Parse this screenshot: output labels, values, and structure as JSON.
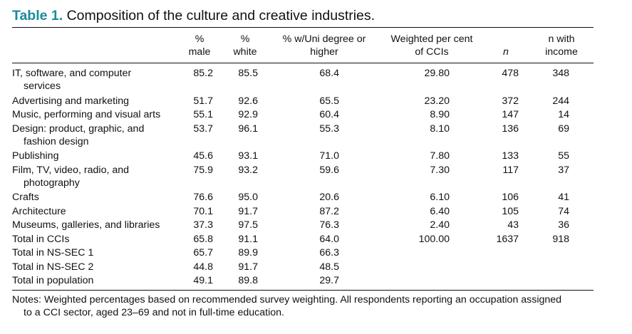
{
  "table": {
    "caption_label": "Table 1.",
    "caption_text": "Composition of the culture and creative industries.",
    "headers": [
      {
        "line1": "%",
        "line2": "male"
      },
      {
        "line1": "%",
        "line2": "white"
      },
      {
        "line1": "% w/Uni degree or",
        "line2": "higher"
      },
      {
        "line1": "Weighted per cent",
        "line2": "of CCIs"
      },
      {
        "line1": "",
        "line2": "n"
      },
      {
        "line1": "n with",
        "line2": "income"
      }
    ],
    "rows": [
      {
        "label1": "IT, software, and computer",
        "label2": "services",
        "male": "85.2",
        "white": "85.5",
        "uni": "68.4",
        "weighted": "29.80",
        "n": "478",
        "income": "348"
      },
      {
        "label1": "Advertising and marketing",
        "label2": "",
        "male": "51.7",
        "white": "92.6",
        "uni": "65.5",
        "weighted": "23.20",
        "n": "372",
        "income": "244"
      },
      {
        "label1": "Music, performing and visual arts",
        "label2": "",
        "male": "55.1",
        "white": "92.9",
        "uni": "60.4",
        "weighted": "8.90",
        "n": "147",
        "income": "14"
      },
      {
        "label1": "Design: product, graphic, and",
        "label2": "fashion design",
        "male": "53.7",
        "white": "96.1",
        "uni": "55.3",
        "weighted": "8.10",
        "n": "136",
        "income": "69"
      },
      {
        "label1": "Publishing",
        "label2": "",
        "male": "45.6",
        "white": "93.1",
        "uni": "71.0",
        "weighted": "7.80",
        "n": "133",
        "income": "55"
      },
      {
        "label1": "Film, TV, video, radio, and",
        "label2": "photography",
        "male": "75.9",
        "white": "93.2",
        "uni": "59.6",
        "weighted": "7.30",
        "n": "117",
        "income": "37"
      },
      {
        "label1": "Crafts",
        "label2": "",
        "male": "76.6",
        "white": "95.0",
        "uni": "20.6",
        "weighted": "6.10",
        "n": "106",
        "income": "41"
      },
      {
        "label1": "Architecture",
        "label2": "",
        "male": "70.1",
        "white": "91.7",
        "uni": "87.2",
        "weighted": "6.40",
        "n": "105",
        "income": "74"
      },
      {
        "label1": "Museums, galleries, and libraries",
        "label2": "",
        "male": "37.3",
        "white": "97.5",
        "uni": "76.3",
        "weighted": "2.40",
        "n": "43",
        "income": "36"
      },
      {
        "label1": "Total in CCIs",
        "label2": "",
        "male": "65.8",
        "white": "91.1",
        "uni": "64.0",
        "weighted": "100.00",
        "n": "1637",
        "income": "918"
      },
      {
        "label1": "Total in NS-SEC 1",
        "label2": "",
        "male": "65.7",
        "white": "89.9",
        "uni": "66.3",
        "weighted": "",
        "n": "",
        "income": ""
      },
      {
        "label1": "Total in NS-SEC 2",
        "label2": "",
        "male": "44.8",
        "white": "91.7",
        "uni": "48.5",
        "weighted": "",
        "n": "",
        "income": ""
      },
      {
        "label1": "Total in population",
        "label2": "",
        "male": "49.1",
        "white": "89.8",
        "uni": "29.7",
        "weighted": "",
        "n": "",
        "income": ""
      }
    ],
    "notes_line1": "Notes: Weighted percentages based on recommended survey weighting. All respondents reporting an occupation assigned",
    "notes_line2": "to a CCI sector, aged 23–69 and not in full-time education."
  }
}
